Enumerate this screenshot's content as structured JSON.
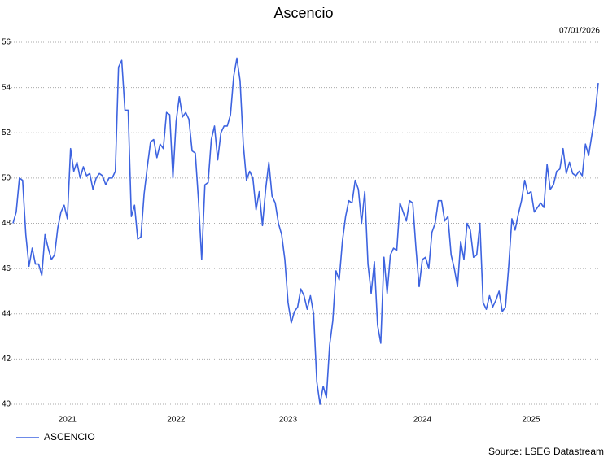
{
  "chart_data": {
    "type": "line",
    "title": "Ascencio",
    "date": "07/01/2026",
    "source": "Source: LSEG Datastream",
    "categories": [
      null,
      null,
      null,
      null,
      null,
      null,
      null,
      null,
      null,
      null,
      null,
      null,
      null,
      null,
      null,
      null,
      null,
      "2021",
      null,
      null,
      null,
      null,
      null,
      null,
      null,
      null,
      null,
      null,
      null,
      null,
      null,
      null,
      null,
      null,
      null,
      null,
      null,
      null,
      null,
      null,
      null,
      null,
      null,
      null,
      null,
      null,
      null,
      null,
      null,
      null,
      null,
      "2022",
      null,
      null,
      null,
      null,
      null,
      null,
      null,
      null,
      null,
      null,
      null,
      null,
      null,
      null,
      null,
      null,
      null,
      null,
      null,
      null,
      null,
      null,
      null,
      null,
      null,
      null,
      null,
      null,
      null,
      null,
      null,
      null,
      null,
      null,
      "2023",
      null,
      null,
      null,
      null,
      null,
      null,
      null,
      null,
      null,
      null,
      null,
      null,
      null,
      null,
      null,
      null,
      null,
      null,
      null,
      null,
      null,
      null,
      null,
      null,
      null,
      null,
      null,
      null,
      null,
      null,
      null,
      null,
      null,
      null,
      null,
      null,
      null,
      null,
      null,
      null,
      null,
      "2024",
      null,
      null,
      null,
      null,
      null,
      null,
      null,
      null,
      null,
      null,
      null,
      null,
      null,
      null,
      null,
      null,
      null,
      null,
      null,
      null,
      null,
      null,
      null,
      null,
      null,
      null,
      null,
      null,
      null,
      null,
      null,
      null,
      null,
      "2025",
      null,
      null,
      null,
      null,
      null,
      null,
      null,
      null,
      null,
      null,
      null,
      null,
      null,
      null,
      null,
      null,
      null,
      null,
      null,
      null,
      null
    ],
    "series": [
      {
        "name": "ASCENCIO",
        "color": "#3d63e0",
        "values": [
          48.0,
          48.5,
          50.0,
          49.9,
          47.5,
          46.1,
          46.9,
          46.2,
          46.2,
          45.7,
          47.5,
          46.9,
          46.4,
          46.6,
          47.8,
          48.5,
          48.8,
          48.2,
          51.3,
          50.3,
          50.7,
          50.0,
          50.5,
          50.1,
          50.2,
          49.5,
          50.0,
          50.2,
          50.1,
          49.7,
          50.0,
          50.0,
          50.3,
          54.9,
          55.2,
          53.0,
          53.0,
          48.3,
          48.8,
          47.3,
          47.4,
          49.3,
          50.5,
          51.6,
          51.7,
          50.9,
          51.5,
          51.3,
          52.9,
          52.8,
          50.0,
          52.5,
          53.6,
          52.7,
          52.9,
          52.6,
          51.2,
          51.1,
          49.0,
          46.4,
          49.7,
          49.8,
          51.7,
          52.3,
          50.8,
          52.0,
          52.3,
          52.3,
          52.8,
          54.5,
          55.3,
          54.3,
          51.5,
          49.9,
          50.3,
          50.0,
          48.6,
          49.4,
          47.9,
          49.5,
          50.7,
          49.2,
          48.9,
          48.0,
          47.5,
          46.4,
          44.5,
          43.6,
          44.1,
          44.3,
          45.1,
          44.8,
          44.2,
          44.8,
          44.0,
          41.0,
          40.0,
          40.8,
          40.3,
          42.6,
          43.7,
          45.9,
          45.5,
          47.2,
          48.3,
          49.0,
          48.9,
          49.9,
          49.5,
          48.0,
          49.4,
          46.2,
          44.9,
          46.3,
          43.5,
          42.7,
          46.5,
          44.9,
          46.6,
          46.9,
          46.8,
          48.9,
          48.5,
          48.1,
          49.0,
          48.9,
          46.9,
          45.2,
          46.4,
          46.5,
          46.0,
          47.6,
          48.0,
          49.0,
          49.0,
          48.1,
          48.3,
          46.6,
          46.0,
          45.2,
          47.2,
          46.4,
          48.0,
          47.7,
          46.5,
          46.6,
          48.0,
          44.5,
          44.2,
          44.8,
          44.3,
          44.6,
          45.0,
          44.1,
          44.3,
          46.1,
          48.2,
          47.7,
          48.4,
          49.0,
          49.9,
          49.3,
          49.4,
          48.5,
          48.7,
          48.9,
          48.7,
          50.6,
          49.5,
          49.7,
          50.3,
          50.4,
          51.3,
          50.2,
          50.7,
          50.2,
          50.1,
          50.3,
          50.1,
          51.5,
          51.0,
          51.9,
          52.8,
          54.2
        ]
      }
    ],
    "ylim": [
      40,
      56
    ],
    "yticks": [
      40,
      42,
      44,
      46,
      48,
      50,
      52,
      54,
      56
    ],
    "grid": true
  }
}
